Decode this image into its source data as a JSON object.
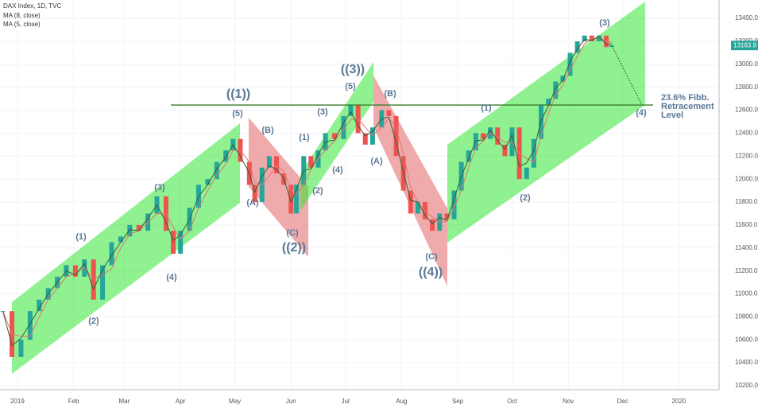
{
  "chart_data": {
    "type": "candlestick",
    "title": "DAX Index, 1D, TVC",
    "xlim": [
      -9.6,
      387
    ],
    "xticks": [
      {
        "value": 0,
        "label": "2019"
      },
      {
        "value": 31,
        "label": "Feb"
      },
      {
        "value": 59,
        "label": "Mar"
      },
      {
        "value": 90,
        "label": "Apr"
      },
      {
        "value": 120,
        "label": "May"
      },
      {
        "value": 151,
        "label": "Jun"
      },
      {
        "value": 181,
        "label": "Jul"
      },
      {
        "value": 212,
        "label": "Aug"
      },
      {
        "value": 243,
        "label": "Sep"
      },
      {
        "value": 273,
        "label": "Oct"
      },
      {
        "value": 304,
        "label": "Nov"
      },
      {
        "value": 334,
        "label": "Dec"
      },
      {
        "value": 365,
        "label": "2020"
      }
    ],
    "ylim": [
      10060,
      13560
    ],
    "yticks": [
      {
        "value": 10200,
        "label": "10200.0"
      },
      {
        "value": 10400,
        "label": "10400.0"
      },
      {
        "value": 10600,
        "label": "10600.0"
      },
      {
        "value": 10800,
        "label": "10800.0"
      },
      {
        "value": 11000,
        "label": "11000.0"
      },
      {
        "value": 11200,
        "label": "11200.0"
      },
      {
        "value": 11400,
        "label": "11400.0"
      },
      {
        "value": 11600,
        "label": "11600.0"
      },
      {
        "value": 11800,
        "label": "11800.0"
      },
      {
        "value": 12000,
        "label": "12000.0"
      },
      {
        "value": 12200,
        "label": "12200.0"
      },
      {
        "value": 12400,
        "label": "12400.0"
      },
      {
        "value": 12600,
        "label": "12600.0"
      },
      {
        "value": 12800,
        "label": "12800.0"
      },
      {
        "value": 13000,
        "label": "13000.0"
      },
      {
        "value": 13200,
        "label": "13200.0"
      },
      {
        "value": 13400,
        "label": "13400.0"
      }
    ],
    "grid": true,
    "up_color": "#26a69a",
    "down_color": "#ef5350",
    "x": [
      -8,
      -3,
      2,
      7,
      12,
      17,
      22,
      27,
      32,
      37,
      42,
      47,
      52,
      57,
      62,
      67,
      72,
      77,
      82,
      86,
      90,
      95,
      100,
      105,
      110,
      115,
      119,
      123,
      128,
      131,
      135,
      139,
      143,
      147,
      151,
      154,
      158,
      162,
      166,
      170,
      175,
      180,
      184,
      188,
      192,
      196,
      201,
      205,
      209,
      213,
      217,
      221,
      225,
      229,
      233,
      237,
      241,
      245,
      249,
      253,
      257,
      261,
      265,
      269,
      273,
      277,
      281,
      285,
      289,
      293,
      297,
      301,
      305,
      309,
      313,
      317,
      321,
      325,
      328
    ],
    "values": [
      10850,
      10450,
      10600,
      10850,
      10950,
      11050,
      11150,
      11250,
      11150,
      11300,
      10950,
      11250,
      11450,
      11500,
      11600,
      11550,
      11700,
      11850,
      11550,
      11350,
      11550,
      11750,
      11950,
      12000,
      12150,
      12250,
      12350,
      12150,
      11950,
      11800,
      12100,
      12200,
      12050,
      11950,
      11700,
      11950,
      12200,
      12100,
      12250,
      12400,
      12350,
      12550,
      12650,
      12400,
      12300,
      12450,
      12600,
      12550,
      12200,
      11900,
      11700,
      11800,
      11650,
      11550,
      11700,
      11650,
      11900,
      12150,
      12250,
      12400,
      12350,
      12450,
      12300,
      12200,
      12450,
      12000,
      12100,
      12350,
      12650,
      12700,
      12850,
      12900,
      13100,
      13200,
      13250,
      13200,
      13250,
      13150,
      13163.9
    ],
    "series": [
      {
        "name": "MA (8, close)",
        "color": "#e57373",
        "values": [
          10850,
          10650,
          10630,
          10630,
          10800,
          10950,
          11050,
          11150,
          11180,
          11230,
          11130,
          11170,
          11220,
          11400,
          11520,
          11550,
          11620,
          11700,
          11700,
          11580,
          11480,
          11550,
          11750,
          11900,
          12030,
          12130,
          12250,
          12250,
          12150,
          11970,
          11950,
          12030,
          12120,
          12070,
          11900,
          11870,
          11950,
          12080,
          12180,
          12250,
          12330,
          12430,
          12520,
          12530,
          12450,
          12380,
          12450,
          12530,
          12450,
          12220,
          11930,
          11800,
          11720,
          11670,
          11630,
          11630,
          11750,
          11900,
          12100,
          12270,
          12330,
          12400,
          12370,
          12320,
          12320,
          12220,
          12180,
          12150,
          12370,
          12570,
          12730,
          12820,
          12950,
          13070,
          13180,
          13220,
          13230,
          13200,
          13190
        ]
      },
      {
        "name": "MA (5, close)",
        "color": "#3a5a3a",
        "values": [
          10850,
          10550,
          10615,
          10740,
          10875,
          11000,
          11100,
          11200,
          11165,
          11265,
          11040,
          11210,
          11335,
          11450,
          11560,
          11550,
          11660,
          11775,
          11625,
          11465,
          11515,
          11650,
          11850,
          11950,
          12090,
          12190,
          12300,
          12200,
          12050,
          11885,
          12025,
          12115,
          12085,
          12010,
          11800,
          11910,
          12075,
          12090,
          12215,
          12325,
          12340,
          12490,
          12585,
          12465,
          12375,
          12415,
          12525,
          12540,
          12325,
          12060,
          11815,
          11800,
          11685,
          11610,
          11665,
          11640,
          11825,
          12025,
          12175,
          12335,
          12340,
          12425,
          12335,
          12260,
          12385,
          12110,
          12140,
          12250,
          12510,
          12635,
          12790,
          12860,
          13025,
          13135,
          13215,
          13210,
          13240,
          13175,
          13177
        ]
      }
    ],
    "last_value": 13163.9,
    "last_color": "#26a69a",
    "fib_level": 12645,
    "fib_color": "#3a7d2c",
    "fib_label": [
      "23.6% Fibb.",
      "Retracement",
      "Level"
    ],
    "annotations": [
      "(1)",
      "(2)",
      "(3)",
      "(4)",
      "(5)",
      "(A)",
      "(B)",
      "(C)",
      "((2))",
      "(1)",
      "(2)",
      "(3)",
      "(4)",
      "(5)",
      "((3))",
      "((1))",
      "(A)",
      "(B)",
      "(C)",
      "((4))",
      "(1)",
      "(2)",
      "(3)",
      "(4)"
    ]
  }
}
